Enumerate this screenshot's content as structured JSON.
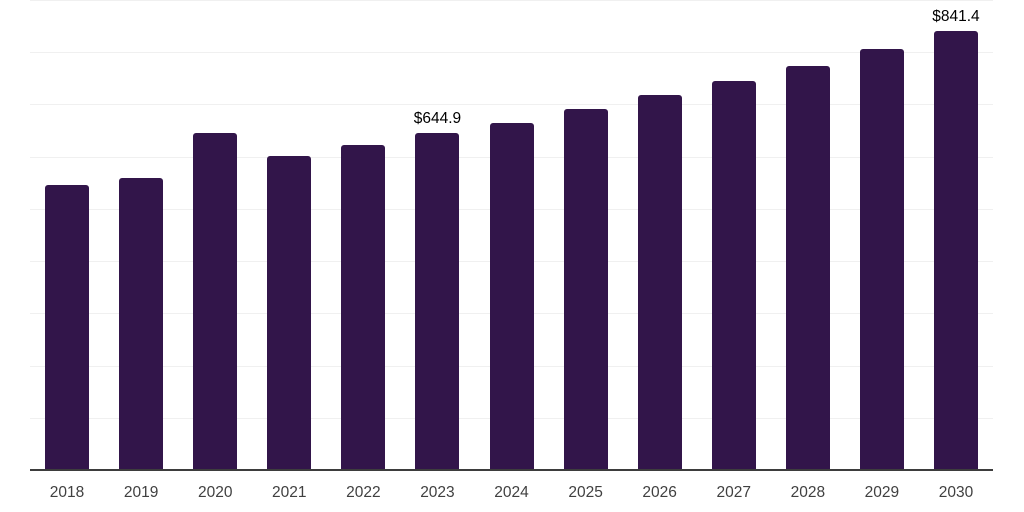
{
  "chart_data": {
    "type": "bar",
    "title": "",
    "xlabel": "",
    "ylabel": "",
    "categories": [
      "2018",
      "2019",
      "2020",
      "2021",
      "2022",
      "2023",
      "2024",
      "2025",
      "2026",
      "2027",
      "2028",
      "2029",
      "2030"
    ],
    "values": [
      546,
      560,
      645,
      602,
      623,
      644.9,
      665,
      691,
      718,
      745,
      773,
      806,
      841.4
    ],
    "labeled_points": [
      {
        "category": "2023",
        "text": "$644.9"
      },
      {
        "category": "2030",
        "text": "$841.4"
      }
    ],
    "ylim": [
      0,
      900
    ],
    "grid_step": 100,
    "grid": true,
    "legend_position": "none",
    "colors": {
      "bar": "#32154a",
      "gridline": "#f0f0f0",
      "axis_line": "#3d3d3d",
      "tick_label": "#404040",
      "value_label": "#000000",
      "background": "#ffffff"
    }
  }
}
